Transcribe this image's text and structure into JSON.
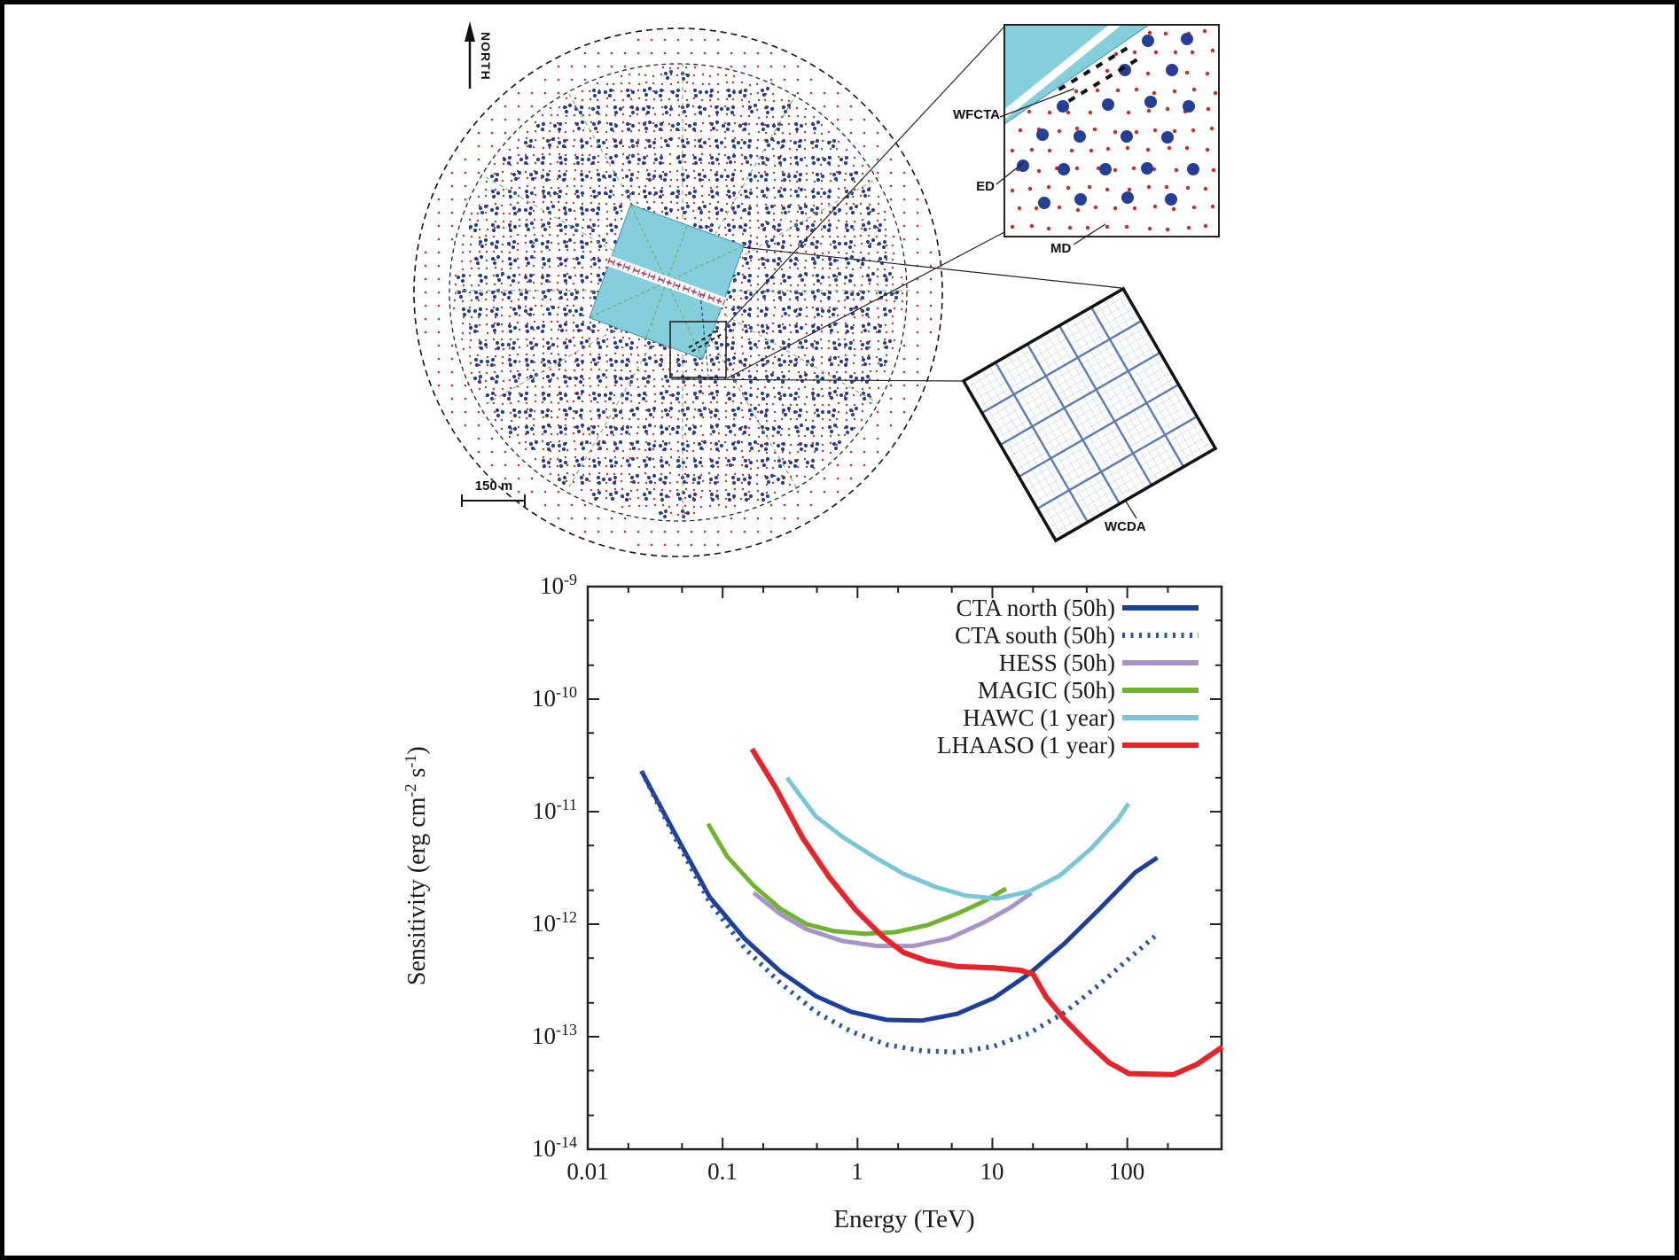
{
  "map": {
    "north_label": "NORTH",
    "scale_label": "150 m",
    "labels": {
      "wfcta": "WFCTA",
      "ed": "ED",
      "md": "MD",
      "wcda": "WCDA"
    },
    "colors": {
      "ed_dot": "#d42920",
      "md_dot": "#253f97",
      "wcda_fill": "#85cfdd",
      "spoke_green": "#5fa75f"
    }
  },
  "chart_data": {
    "type": "line",
    "title": "",
    "xlabel": "Energy (TeV)",
    "ylabel_parts": [
      "Sensitivity (erg cm",
      "-2",
      " s",
      "-1",
      ")"
    ],
    "x_tick_labels": [
      "0.01",
      "0.1",
      "1",
      "10",
      "100"
    ],
    "y_tick_base": "10",
    "y_tick_exponents": [
      "-9",
      "-10",
      "-11",
      "-12",
      "-13",
      "-14"
    ],
    "xlim": [
      0.01,
      500
    ],
    "ylim": [
      1e-14,
      1e-09
    ],
    "x_scale": "log",
    "y_scale": "log",
    "grid": false,
    "legend_position": "top-right",
    "series": [
      {
        "id": "cta-north",
        "name": "CTA north (50h)",
        "color": "#1d3f99",
        "style": "solid",
        "width": 5,
        "points": [
          [
            0.025,
            2.3e-11
          ],
          [
            0.044,
            6.5e-12
          ],
          [
            0.08,
            1.75e-12
          ],
          [
            0.146,
            7.4e-13
          ],
          [
            0.268,
            3.8e-13
          ],
          [
            0.49,
            2.3e-13
          ],
          [
            0.9,
            1.66e-13
          ],
          [
            1.65,
            1.41e-13
          ],
          [
            3.0,
            1.39e-13
          ],
          [
            5.5,
            1.6e-13
          ],
          [
            10.2,
            2.2e-13
          ],
          [
            18.6,
            3.6e-13
          ],
          [
            34,
            6.7e-13
          ],
          [
            62,
            1.36e-12
          ],
          [
            115,
            2.9e-12
          ],
          [
            167,
            3.9e-12
          ]
        ]
      },
      {
        "id": "cta-south",
        "name": "CTA south (50h)",
        "color": "#2a52a8",
        "style": "dashed",
        "width": 5.5,
        "points": [
          [
            0.025,
            2.3e-11
          ],
          [
            0.044,
            6e-12
          ],
          [
            0.08,
            1.57e-12
          ],
          [
            0.146,
            6.1e-13
          ],
          [
            0.268,
            3e-13
          ],
          [
            0.49,
            1.66e-13
          ],
          [
            0.9,
            1.11e-13
          ],
          [
            1.65,
            8.5e-14
          ],
          [
            3.0,
            7.5e-14
          ],
          [
            5.5,
            7.3e-14
          ],
          [
            10.2,
            8.2e-14
          ],
          [
            18.6,
            1.07e-13
          ],
          [
            34,
            1.63e-13
          ],
          [
            62,
            2.9e-13
          ],
          [
            106,
            5.1e-13
          ],
          [
            160,
            7.8e-13
          ]
        ]
      },
      {
        "id": "hess",
        "name": "HESS (50h)",
        "color": "#a693cc",
        "style": "solid",
        "width": 5,
        "points": [
          [
            0.17,
            1.9e-12
          ],
          [
            0.27,
            1.22e-12
          ],
          [
            0.42,
            9e-13
          ],
          [
            0.77,
            7.1e-13
          ],
          [
            1.4,
            6.4e-13
          ],
          [
            2.6,
            6.4e-13
          ],
          [
            4.8,
            7.5e-13
          ],
          [
            8.7,
            1.04e-12
          ],
          [
            13.7,
            1.41e-12
          ],
          [
            19.5,
            1.9e-12
          ]
        ]
      },
      {
        "id": "magic",
        "name": "MAGIC (50h)",
        "color": "#70b32f",
        "style": "solid",
        "width": 5,
        "points": [
          [
            0.078,
            7.8e-12
          ],
          [
            0.108,
            4e-12
          ],
          [
            0.17,
            2.2e-12
          ],
          [
            0.27,
            1.36e-12
          ],
          [
            0.42,
            1e-12
          ],
          [
            0.66,
            8.7e-13
          ],
          [
            1.13,
            8.2e-13
          ],
          [
            1.9,
            8.5e-13
          ],
          [
            3.3,
            9.8e-13
          ],
          [
            5.5,
            1.24e-12
          ],
          [
            8.7,
            1.6e-12
          ],
          [
            12.6,
            2.07e-12
          ]
        ]
      },
      {
        "id": "hawc",
        "name": "HAWC (1 year)",
        "color": "#7ac6d8",
        "style": "solid",
        "width": 5,
        "points": [
          [
            0.3,
            2e-11
          ],
          [
            0.49,
            9.1e-12
          ],
          [
            0.77,
            6e-12
          ],
          [
            1.31,
            4e-12
          ],
          [
            2.2,
            2.8e-12
          ],
          [
            3.8,
            2.14e-12
          ],
          [
            6.4,
            1.79e-12
          ],
          [
            10.9,
            1.69e-12
          ],
          [
            18.6,
            1.95e-12
          ],
          [
            31.6,
            2.7e-12
          ],
          [
            54,
            4.7e-12
          ],
          [
            85,
            8.5e-12
          ],
          [
            102,
            1.18e-11
          ]
        ]
      },
      {
        "id": "lhaaso",
        "name": "LHAASO (1 year)",
        "color": "#e8232a",
        "style": "solid",
        "width": 6,
        "points": [
          [
            0.165,
            3.6e-11
          ],
          [
            0.25,
            1.6e-11
          ],
          [
            0.39,
            5.9e-12
          ],
          [
            0.62,
            2.6e-12
          ],
          [
            0.97,
            1.34e-12
          ],
          [
            1.53,
            7.8e-13
          ],
          [
            2.2,
            5.6e-13
          ],
          [
            3.3,
            4.7e-13
          ],
          [
            5.5,
            4.2e-13
          ],
          [
            10.2,
            4.1e-13
          ],
          [
            16,
            3.9e-13
          ],
          [
            20,
            3.6e-13
          ],
          [
            25,
            2.26e-13
          ],
          [
            34,
            1.44e-13
          ],
          [
            50,
            9e-14
          ],
          [
            73,
            5.9e-14
          ],
          [
            103,
            4.7e-14
          ],
          [
            220,
            4.6e-14
          ],
          [
            330,
            5.7e-14
          ],
          [
            506,
            8.1e-14
          ]
        ]
      }
    ]
  }
}
